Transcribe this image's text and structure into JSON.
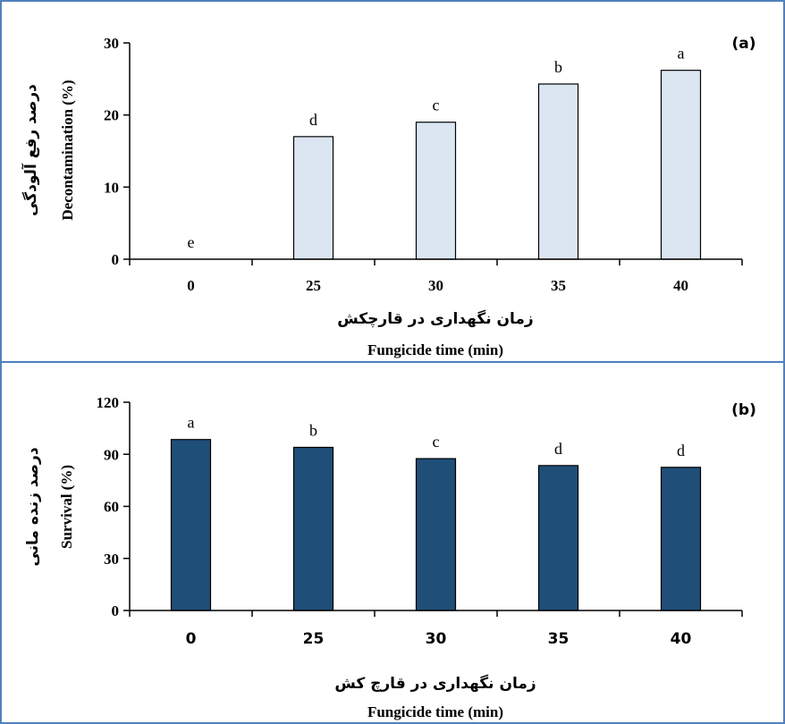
{
  "colors": {
    "frame": "#4f81bd",
    "bar_a_fill": "#dce6f2",
    "bar_a_stroke": "#000000",
    "bar_b_fill": "#1f4e79",
    "bar_b_stroke": "#000000"
  },
  "chart_data": [
    {
      "type": "bar",
      "panel_label": "(a)",
      "categories": [
        "0",
        "25",
        "30",
        "35",
        "40"
      ],
      "values": [
        0,
        17,
        19,
        24.3,
        26.2
      ],
      "letters": [
        "e",
        "d",
        "c",
        "b",
        "a"
      ],
      "xlabel_fa": "زمان نگهداری در قارچکش",
      "xlabel_en": "Fungicide time (min)",
      "ylabel_fa": "درصد رفع آلودگی",
      "ylabel_en": "Decontamination (%)",
      "ylim": [
        0,
        30
      ],
      "yticks": [
        "0",
        "10",
        "20",
        "30"
      ],
      "grid": false
    },
    {
      "type": "bar",
      "panel_label": "(b)",
      "categories": [
        "0",
        "25",
        "30",
        "35",
        "40"
      ],
      "values": [
        98.5,
        94,
        87.5,
        83.5,
        82.5
      ],
      "letters": [
        "a",
        "b",
        "c",
        "d",
        "d"
      ],
      "xlabel_fa": "زمان نگهداری در قارچ کش",
      "xlabel_en": "Fungicide time (min)",
      "ylabel_fa": "درصد زنده مانی",
      "ylabel_en": "Survival (%)",
      "ylim": [
        0,
        120
      ],
      "yticks": [
        "0",
        "30",
        "60",
        "90",
        "120"
      ],
      "grid": false
    }
  ]
}
